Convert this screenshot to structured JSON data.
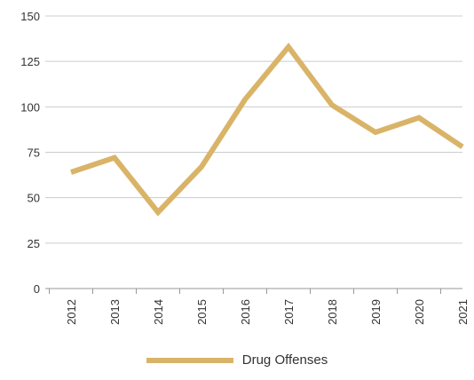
{
  "chart_data": {
    "type": "line",
    "categories": [
      "2012",
      "2013",
      "2014",
      "2015",
      "2016",
      "2017",
      "2018",
      "2019",
      "2020",
      "2021"
    ],
    "series": [
      {
        "name": "Drug Offenses",
        "color": "#D9B468",
        "values": [
          64,
          72,
          42,
          67,
          104,
          133,
          101,
          86,
          94,
          78
        ]
      }
    ],
    "y_ticks": [
      "0",
      "25",
      "50",
      "75",
      "100",
      "125",
      "150"
    ],
    "ylim": [
      0,
      150
    ],
    "grid": true,
    "legend_position": "bottom",
    "title": "",
    "xlabel": "",
    "ylabel": ""
  },
  "colors": {
    "series": "#D9B468",
    "grid": "#CCCCCC",
    "axis": "#999999",
    "text": "#333333"
  }
}
